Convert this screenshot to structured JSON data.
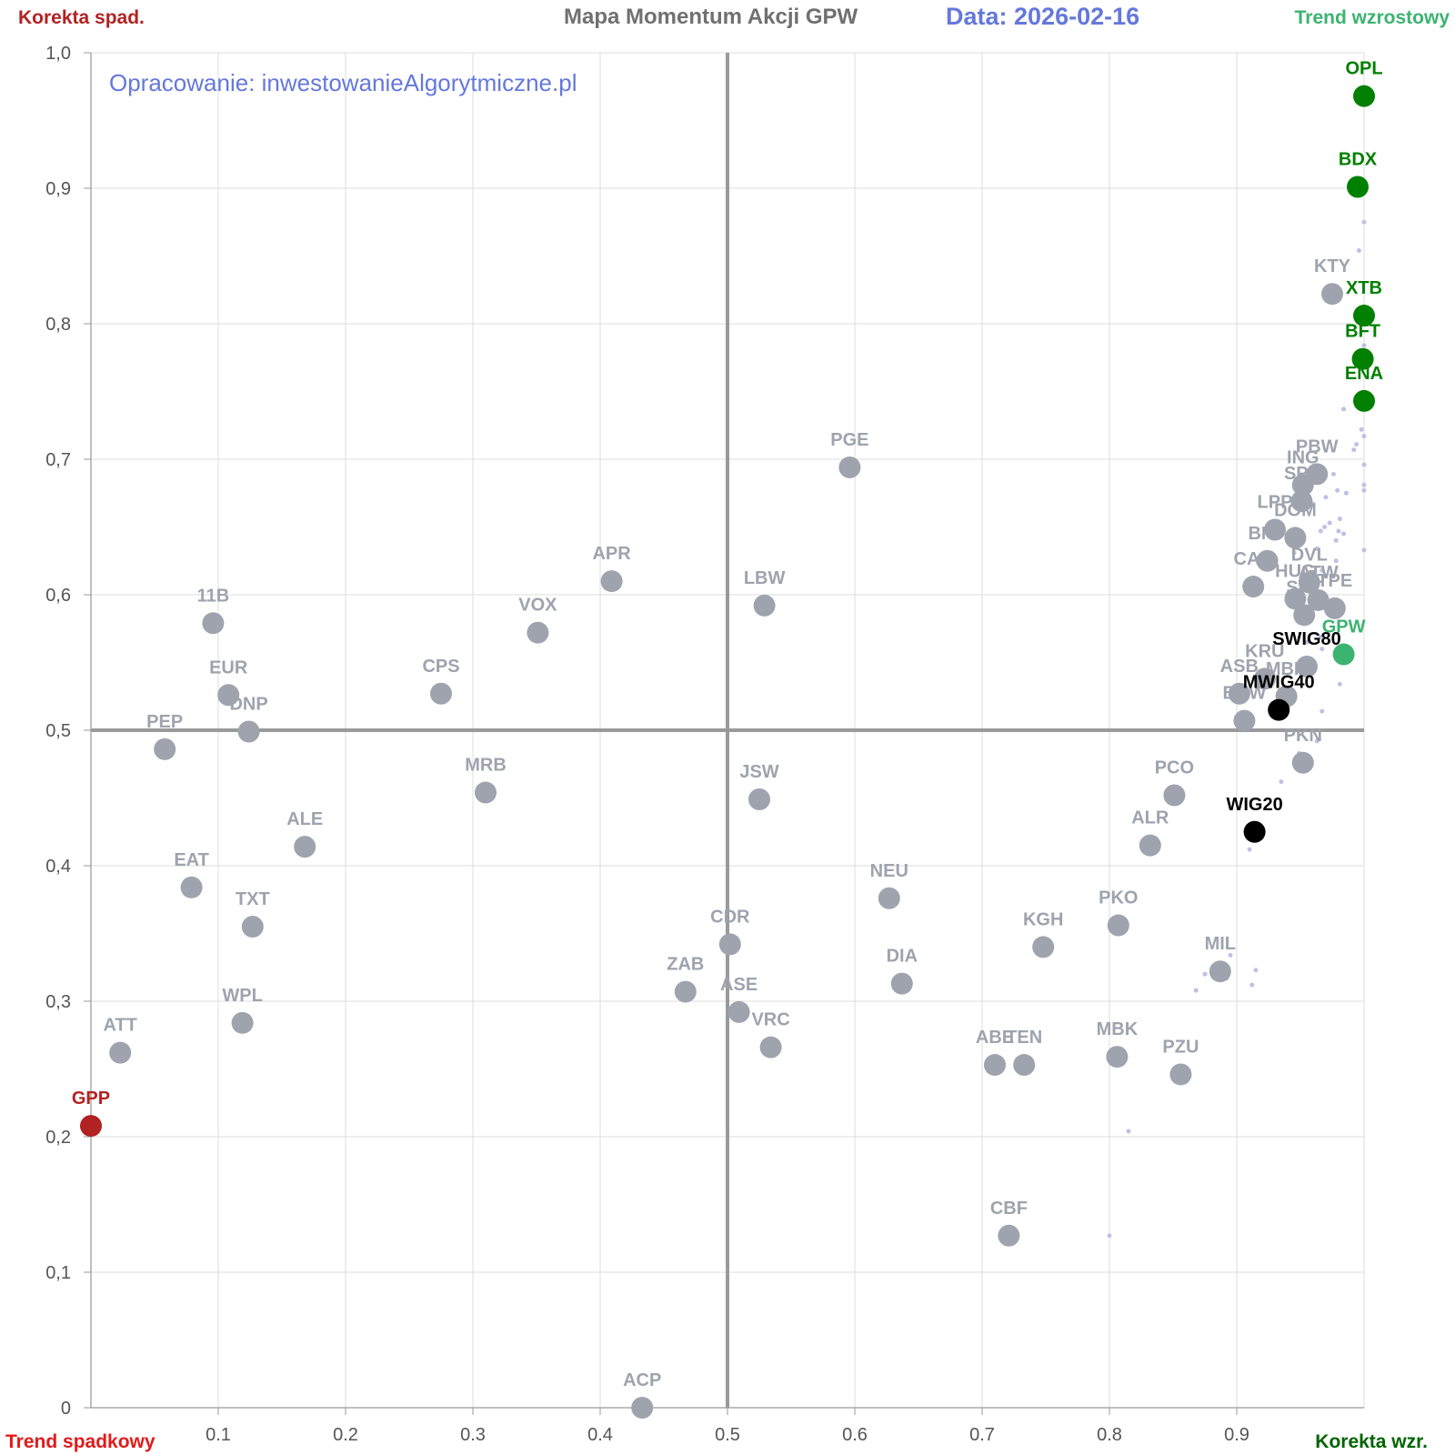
{
  "header": {
    "title": "Mapa Momentum Akcji GPW",
    "date": "Data: 2026-02-16",
    "credit": "Opracowanie: inwestowanieAlgorytmiczne.pl"
  },
  "corners": {
    "top_left": "Korekta spad.",
    "top_right": "Trend wzrostowy",
    "bottom_left": "Trend spadkowy",
    "bottom_right": "Korekta wzr."
  },
  "colors": {
    "grey": "#9ea3ae",
    "green": "#008000",
    "light_green": "#3cb371",
    "black": "#000000",
    "red": "#b22222",
    "label_grey": "#9ea3ae",
    "minor_dot": "#c0c0e6"
  },
  "chart_data": {
    "type": "scatter",
    "title": "Mapa Momentum Akcji GPW",
    "xlabel": "",
    "ylabel": "",
    "xlim": [
      0,
      1
    ],
    "ylim": [
      0,
      1
    ],
    "divider_x": 0.5,
    "divider_y": 0.5,
    "grid": true,
    "x_ticks": [
      "0.1",
      "0.2",
      "0.3",
      "0.4",
      "0.5",
      "0.6",
      "0.7",
      "0.8",
      "0.9"
    ],
    "y_ticks": [
      "0",
      "0,1",
      "0,2",
      "0,3",
      "0,4",
      "0,5",
      "0,6",
      "0,7",
      "0,8",
      "0,9",
      "1,0"
    ],
    "points": [
      {
        "label": "OPL",
        "x": 1.0,
        "y": 0.968,
        "color": "green"
      },
      {
        "label": "BDX",
        "x": 0.995,
        "y": 0.901,
        "color": "green"
      },
      {
        "label": "KTY",
        "x": 0.975,
        "y": 0.822,
        "color": "grey"
      },
      {
        "label": "XTB",
        "x": 1.0,
        "y": 0.806,
        "color": "green"
      },
      {
        "label": "BFT",
        "x": 0.999,
        "y": 0.774,
        "color": "green"
      },
      {
        "label": "ENA",
        "x": 1.0,
        "y": 0.743,
        "color": "green"
      },
      {
        "label": "PGE",
        "x": 0.596,
        "y": 0.694,
        "color": "grey"
      },
      {
        "label": "PBW",
        "x": 0.963,
        "y": 0.689,
        "color": "grey"
      },
      {
        "label": "ING",
        "x": 0.952,
        "y": 0.681,
        "color": "grey"
      },
      {
        "label": "SPL",
        "x": 0.951,
        "y": 0.669,
        "color": "grey"
      },
      {
        "label": "LPP",
        "x": 0.93,
        "y": 0.648,
        "color": "grey"
      },
      {
        "label": "DOM",
        "x": 0.946,
        "y": 0.642,
        "color": "grey"
      },
      {
        "label": "BNP",
        "x": 0.924,
        "y": 0.625,
        "color": "grey"
      },
      {
        "label": "DVL",
        "x": 0.957,
        "y": 0.609,
        "color": "grey"
      },
      {
        "label": "CAR",
        "x": 0.913,
        "y": 0.606,
        "color": "grey"
      },
      {
        "label": "HUG",
        "x": 0.946,
        "y": 0.597,
        "color": "grey"
      },
      {
        "label": "ATW",
        "x": 0.964,
        "y": 0.596,
        "color": "grey"
      },
      {
        "label": "TPE",
        "x": 0.977,
        "y": 0.59,
        "color": "grey"
      },
      {
        "label": "SNT",
        "x": 0.953,
        "y": 0.585,
        "color": "grey"
      },
      {
        "label": "APR",
        "x": 0.409,
        "y": 0.61,
        "color": "grey"
      },
      {
        "label": "LBW",
        "x": 0.529,
        "y": 0.592,
        "color": "grey"
      },
      {
        "label": "11B",
        "x": 0.096,
        "y": 0.579,
        "color": "grey"
      },
      {
        "label": "VOX",
        "x": 0.351,
        "y": 0.572,
        "color": "grey"
      },
      {
        "label": "GPW",
        "x": 0.984,
        "y": 0.556,
        "color": "light_green"
      },
      {
        "label": "SWIG80",
        "x": 0.955,
        "y": 0.547,
        "color": "black_label_grey_dot"
      },
      {
        "label": "KRU",
        "x": 0.922,
        "y": 0.538,
        "color": "grey"
      },
      {
        "label": "ASB",
        "x": 0.902,
        "y": 0.527,
        "color": "grey"
      },
      {
        "label": "MBR",
        "x": 0.939,
        "y": 0.525,
        "color": "grey"
      },
      {
        "label": "CPS",
        "x": 0.275,
        "y": 0.527,
        "color": "grey"
      },
      {
        "label": "EUR",
        "x": 0.108,
        "y": 0.526,
        "color": "grey"
      },
      {
        "label": "MWIG40",
        "x": 0.933,
        "y": 0.515,
        "color": "black"
      },
      {
        "label": "BHW",
        "x": 0.906,
        "y": 0.507,
        "color": "grey"
      },
      {
        "label": "DNP",
        "x": 0.124,
        "y": 0.499,
        "color": "grey"
      },
      {
        "label": "PEP",
        "x": 0.058,
        "y": 0.486,
        "color": "grey"
      },
      {
        "label": "PKN",
        "x": 0.952,
        "y": 0.476,
        "color": "grey"
      },
      {
        "label": "MRB",
        "x": 0.31,
        "y": 0.454,
        "color": "grey"
      },
      {
        "label": "PCO",
        "x": 0.851,
        "y": 0.452,
        "color": "grey"
      },
      {
        "label": "JSW",
        "x": 0.525,
        "y": 0.449,
        "color": "grey"
      },
      {
        "label": "WIG20",
        "x": 0.914,
        "y": 0.425,
        "color": "black"
      },
      {
        "label": "ALR",
        "x": 0.832,
        "y": 0.415,
        "color": "grey"
      },
      {
        "label": "ALE",
        "x": 0.168,
        "y": 0.414,
        "color": "grey"
      },
      {
        "label": "EAT",
        "x": 0.079,
        "y": 0.384,
        "color": "grey"
      },
      {
        "label": "NEU",
        "x": 0.627,
        "y": 0.376,
        "color": "grey"
      },
      {
        "label": "PKO",
        "x": 0.807,
        "y": 0.356,
        "color": "grey"
      },
      {
        "label": "TXT",
        "x": 0.127,
        "y": 0.355,
        "color": "grey"
      },
      {
        "label": "CDR",
        "x": 0.502,
        "y": 0.342,
        "color": "grey"
      },
      {
        "label": "KGH",
        "x": 0.748,
        "y": 0.34,
        "color": "grey"
      },
      {
        "label": "MIL",
        "x": 0.887,
        "y": 0.322,
        "color": "grey"
      },
      {
        "label": "DIA",
        "x": 0.637,
        "y": 0.313,
        "color": "grey"
      },
      {
        "label": "ZAB",
        "x": 0.467,
        "y": 0.307,
        "color": "grey"
      },
      {
        "label": "ASE",
        "x": 0.509,
        "y": 0.292,
        "color": "grey"
      },
      {
        "label": "WPL",
        "x": 0.119,
        "y": 0.284,
        "color": "grey"
      },
      {
        "label": "VRC",
        "x": 0.534,
        "y": 0.266,
        "color": "grey"
      },
      {
        "label": "ATT",
        "x": 0.023,
        "y": 0.262,
        "color": "grey"
      },
      {
        "label": "MBK",
        "x": 0.806,
        "y": 0.259,
        "color": "grey"
      },
      {
        "label": "ABE",
        "x": 0.71,
        "y": 0.253,
        "color": "grey"
      },
      {
        "label": "TEN",
        "x": 0.733,
        "y": 0.253,
        "color": "grey"
      },
      {
        "label": "PZU",
        "x": 0.856,
        "y": 0.246,
        "color": "grey"
      },
      {
        "label": "GPP",
        "x": 0.0,
        "y": 0.208,
        "color": "red"
      },
      {
        "label": "CBF",
        "x": 0.721,
        "y": 0.127,
        "color": "grey"
      },
      {
        "label": "ACP",
        "x": 0.433,
        "y": 0.0,
        "color": "grey"
      }
    ],
    "minor_points": [
      {
        "x": 1.0,
        "y": 0.875
      },
      {
        "x": 0.996,
        "y": 0.854
      },
      {
        "x": 1.0,
        "y": 0.784
      },
      {
        "x": 0.984,
        "y": 0.737
      },
      {
        "x": 0.998,
        "y": 0.722
      },
      {
        "x": 1.0,
        "y": 0.717
      },
      {
        "x": 0.994,
        "y": 0.711
      },
      {
        "x": 0.992,
        "y": 0.707
      },
      {
        "x": 1.0,
        "y": 0.696
      },
      {
        "x": 0.976,
        "y": 0.689
      },
      {
        "x": 1.0,
        "y": 0.681
      },
      {
        "x": 1.0,
        "y": 0.677
      },
      {
        "x": 0.979,
        "y": 0.677
      },
      {
        "x": 0.986,
        "y": 0.675
      },
      {
        "x": 0.97,
        "y": 0.672
      },
      {
        "x": 0.96,
        "y": 0.667
      },
      {
        "x": 0.981,
        "y": 0.656
      },
      {
        "x": 0.973,
        "y": 0.653
      },
      {
        "x": 0.969,
        "y": 0.65
      },
      {
        "x": 0.966,
        "y": 0.647
      },
      {
        "x": 0.98,
        "y": 0.647
      },
      {
        "x": 0.984,
        "y": 0.645
      },
      {
        "x": 0.978,
        "y": 0.64
      },
      {
        "x": 0.963,
        "y": 0.634
      },
      {
        "x": 1.0,
        "y": 0.633
      },
      {
        "x": 0.945,
        "y": 0.631
      },
      {
        "x": 0.978,
        "y": 0.625
      },
      {
        "x": 0.967,
        "y": 0.618
      },
      {
        "x": 0.958,
        "y": 0.602
      },
      {
        "x": 0.962,
        "y": 0.593
      },
      {
        "x": 0.966,
        "y": 0.569
      },
      {
        "x": 0.955,
        "y": 0.565
      },
      {
        "x": 0.967,
        "y": 0.56
      },
      {
        "x": 0.959,
        "y": 0.543
      },
      {
        "x": 0.981,
        "y": 0.534
      },
      {
        "x": 0.967,
        "y": 0.514
      },
      {
        "x": 0.963,
        "y": 0.492
      },
      {
        "x": 0.949,
        "y": 0.483
      },
      {
        "x": 0.935,
        "y": 0.462
      },
      {
        "x": 0.91,
        "y": 0.412
      },
      {
        "x": 0.895,
        "y": 0.334
      },
      {
        "x": 0.915,
        "y": 0.323
      },
      {
        "x": 0.882,
        "y": 0.324
      },
      {
        "x": 0.875,
        "y": 0.32
      },
      {
        "x": 0.892,
        "y": 0.317
      },
      {
        "x": 0.912,
        "y": 0.312
      },
      {
        "x": 0.868,
        "y": 0.308
      },
      {
        "x": 0.815,
        "y": 0.204
      },
      {
        "x": 0.8,
        "y": 0.127
      }
    ]
  }
}
